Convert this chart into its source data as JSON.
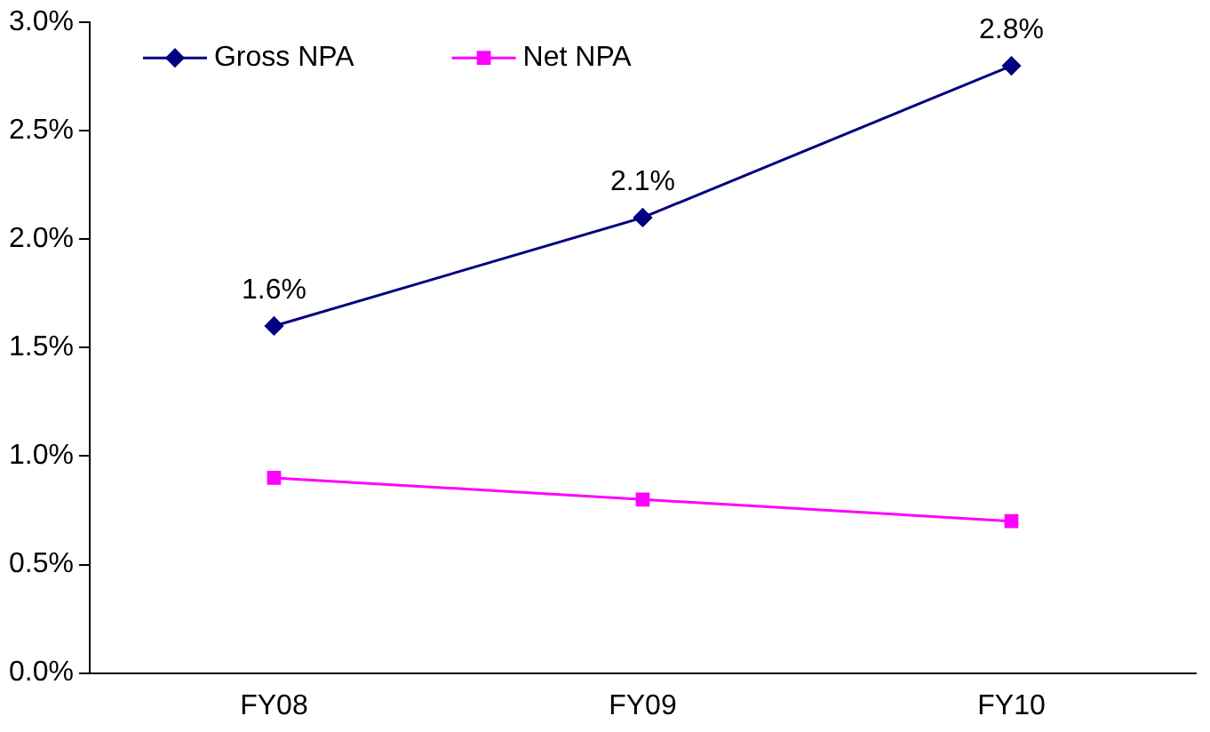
{
  "chart_data": {
    "type": "line",
    "categories": [
      "FY08",
      "FY09",
      "FY10"
    ],
    "series": [
      {
        "name": "Gross NPA",
        "color": "#000080",
        "marker": "diamond",
        "values": [
          1.6,
          2.1,
          2.8
        ],
        "value_labels": [
          "1.6%",
          "2.1%",
          "2.8%"
        ]
      },
      {
        "name": "Net NPA",
        "color": "#ff00ff",
        "marker": "square",
        "values": [
          0.9,
          0.8,
          0.7
        ]
      }
    ],
    "ylim": [
      0,
      3
    ],
    "yticks": [
      {
        "value": 0,
        "label": "0.0%"
      },
      {
        "value": 0.5,
        "label": "0.5%"
      },
      {
        "value": 1,
        "label": "1.0%"
      },
      {
        "value": 1.5,
        "label": "1.5%"
      },
      {
        "value": 2,
        "label": "2.0%"
      },
      {
        "value": 2.5,
        "label": "2.5%"
      },
      {
        "value": 3,
        "label": "3.0%"
      }
    ],
    "grid": false,
    "legend": "top left"
  }
}
